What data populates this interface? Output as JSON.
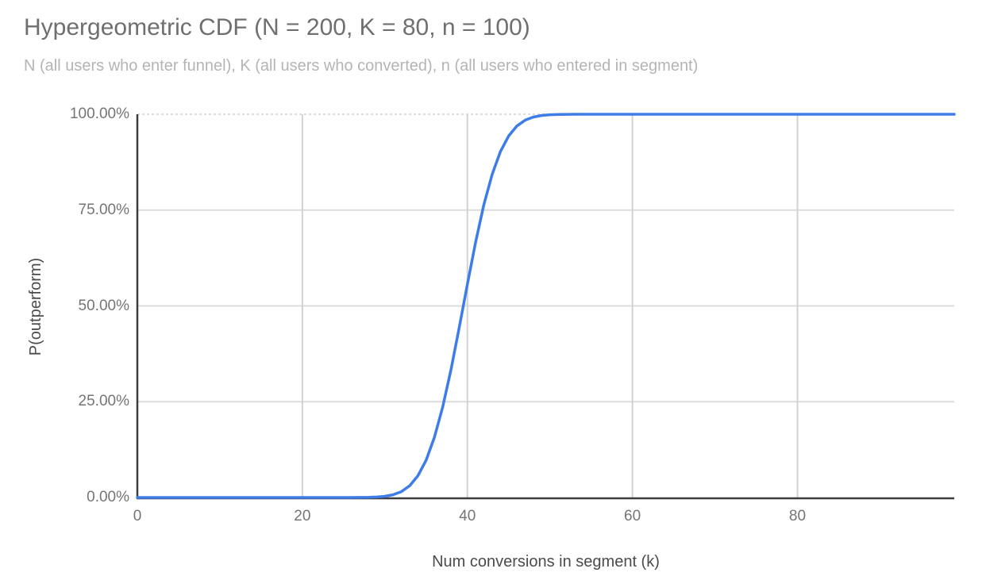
{
  "colors": {
    "background": "#ffffff",
    "line": "#3e7de7",
    "title": "#6f6f6f",
    "subtitle": "#b4b4b4",
    "tick_label": "#757575",
    "axis_title": "#4b4b4b",
    "gridline_horizontal": "#dcdcdc",
    "gridline_vertical": "#d2d2d2",
    "axis_line": "#3c3c3c"
  },
  "chart_data": {
    "type": "line",
    "title": "Hypergeometric CDF (N = 200, K = 80, n = 100)",
    "subtitle": "N (all users who enter funnel), K (all users who converted), n (all users who entered in segment)",
    "xlabel": "Num conversions in segment (k)",
    "ylabel": "P(outperform)",
    "xlim": [
      0,
      99
    ],
    "ylim": [
      0,
      1
    ],
    "grid": true,
    "legend": false,
    "x_ticks": [
      0,
      20,
      40,
      60,
      80
    ],
    "y_ticks": [
      {
        "label": "0.00%",
        "value": 0.0
      },
      {
        "label": "25.00%",
        "value": 0.25
      },
      {
        "label": "50.00%",
        "value": 0.5
      },
      {
        "label": "75.00%",
        "value": 0.75
      },
      {
        "label": "100.00%",
        "value": 1.0
      }
    ],
    "series": [
      {
        "name": "P(outperform)",
        "x": [
          0,
          5,
          10,
          15,
          20,
          24,
          25,
          26,
          27,
          28,
          29,
          30,
          31,
          32,
          33,
          34,
          35,
          36,
          37,
          38,
          39,
          40,
          41,
          42,
          43,
          44,
          45,
          46,
          47,
          48,
          49,
          50,
          51,
          52,
          53,
          54,
          55,
          56,
          60,
          70,
          80,
          90,
          99
        ],
        "y": [
          0,
          0,
          0,
          0,
          0,
          0,
          0.0,
          0.0001,
          0.0002,
          0.0005,
          0.0013,
          0.0031,
          0.0072,
          0.0154,
          0.0307,
          0.0567,
          0.0975,
          0.1572,
          0.2358,
          0.3327,
          0.4428,
          0.5572,
          0.6673,
          0.7642,
          0.8428,
          0.9025,
          0.9433,
          0.9693,
          0.9846,
          0.9928,
          0.9969,
          0.9987,
          0.9995,
          0.9998,
          0.9999,
          1,
          1,
          1,
          1,
          1,
          1,
          1,
          1
        ]
      }
    ]
  }
}
